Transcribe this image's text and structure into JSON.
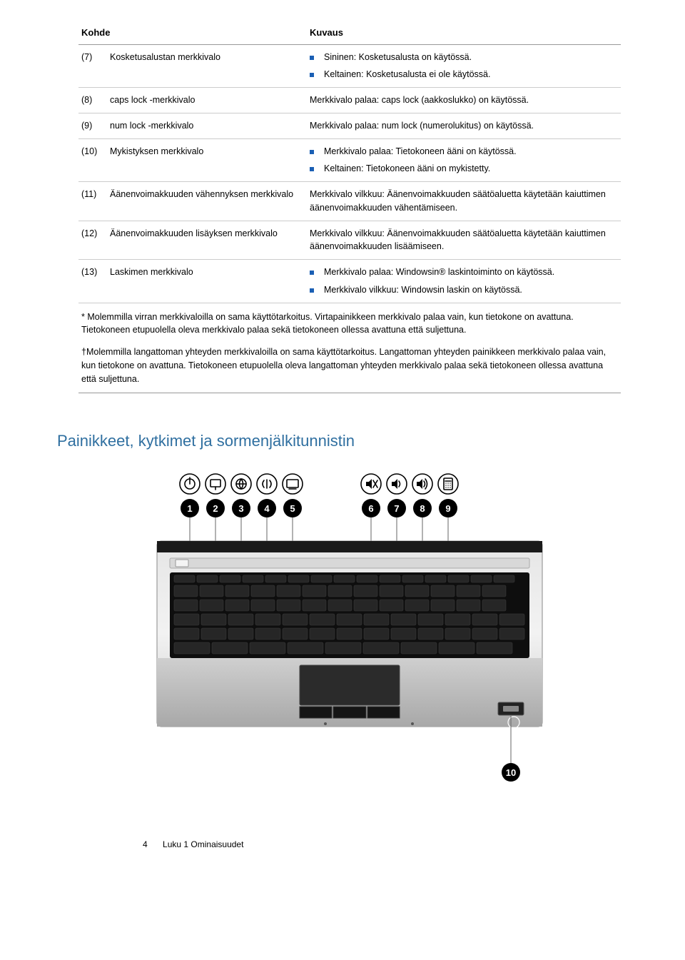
{
  "table": {
    "headers": {
      "col1": "Kohde",
      "col2": "Kuvaus"
    },
    "rows": [
      {
        "idx": "(7)",
        "label": "Kosketusalustan merkkivalo",
        "bullets": [
          "Sininen: Kosketusalusta on käytössä.",
          "Keltainen: Kosketusalusta ei ole käytössä."
        ]
      },
      {
        "idx": "(8)",
        "label": "caps lock -merkkivalo",
        "text": "Merkkivalo palaa: caps lock (aakkoslukko) on käytössä."
      },
      {
        "idx": "(9)",
        "label": "num lock -merkkivalo",
        "text": "Merkkivalo palaa: num lock (numerolukitus) on käytössä."
      },
      {
        "idx": "(10)",
        "label": "Mykistyksen merkkivalo",
        "bullets": [
          "Merkkivalo palaa: Tietokoneen ääni on käytössä.",
          "Keltainen: Tietokoneen ääni on mykistetty."
        ]
      },
      {
        "idx": "(11)",
        "label": "Äänenvoimakkuuden vähennyksen merkkivalo",
        "text": "Merkkivalo vilkkuu: Äänenvoimakkuuden säätöaluetta käytetään kaiuttimen äänenvoimakkuuden vähentämiseen."
      },
      {
        "idx": "(12)",
        "label": "Äänenvoimakkuuden lisäyksen merkkivalo",
        "text": "Merkkivalo vilkkuu: Äänenvoimakkuuden säätöaluetta käytetään kaiuttimen äänenvoimakkuuden lisäämiseen."
      },
      {
        "idx": "(13)",
        "label": "Laskimen merkkivalo",
        "bullets": [
          "Merkkivalo palaa: Windowsin® laskintoiminto on käytössä.",
          "Merkkivalo vilkkuu: Windowsin laskin on käytössä."
        ]
      }
    ],
    "footnotes": [
      "* Molemmilla virran merkkivaloilla on sama käyttötarkoitus. Virtapainikkeen merkkivalo palaa vain, kun tietokone on avattuna. Tietokoneen etupuolella oleva merkkivalo palaa sekä tietokoneen ollessa avattuna että suljettuna.",
      "†Molemmilla langattoman yhteyden merkkivaloilla on sama käyttötarkoitus. Langattoman yhteyden painikkeen merkkivalo palaa vain, kun tietokone on avattuna. Tietokoneen etupuolella oleva langattoman yhteyden merkkivalo palaa sekä tietokoneen ollessa avattuna että suljettuna."
    ]
  },
  "section_heading": "Painikkeet, kytkimet ja sormenjälkitunnistin",
  "footer": {
    "page": "4",
    "chapter": "Luku 1   Ominaisuudet"
  },
  "illustration": {
    "callouts": [
      "1",
      "2",
      "3",
      "4",
      "5",
      "6",
      "7",
      "8",
      "9",
      "10"
    ],
    "colors": {
      "body_top": "#d0d0d0",
      "body_mid": "#ededed",
      "body_bot": "#b9b9b9",
      "key_area": "#111111",
      "key": "#2a2a2a",
      "key_border": "#3a3a3a",
      "callout_fill": "#000000",
      "callout_text": "#ffffff",
      "icon_stroke": "#000000",
      "line": "#444444",
      "touchpad": "#2b2b2b",
      "touchpad_btn": "#1a1a1a",
      "logo": "#ffffff"
    }
  }
}
